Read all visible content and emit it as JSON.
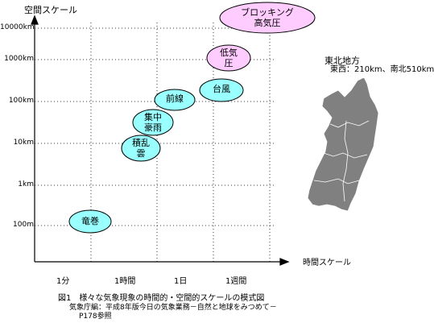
{
  "axis": {
    "y_title": "空間スケール",
    "x_title": "時間スケール",
    "y_ticks": [
      "10000km",
      "1000km",
      "100km",
      "10km",
      "1km",
      "100m"
    ],
    "x_ticks": [
      "1分",
      "1時間",
      "1日",
      "1週間"
    ]
  },
  "phenomena": {
    "blocking_line1": "ブロッキング",
    "blocking_line2": "高気圧",
    "low_line1": "低気",
    "low_line2": "圧",
    "typhoon": "台風",
    "front": "前線",
    "heavy_rain_line1": "集中",
    "heavy_rain_line2": "豪雨",
    "cumulonimbus_line1": "積乱",
    "cumulonimbus_line2": "雲",
    "tornado": "竜巻"
  },
  "colors": {
    "cyan_fill": "#99ffff",
    "pink_fill": "#ffccff",
    "map_fill": "#808080"
  },
  "map": {
    "region": "東北地方",
    "size": "東西：210km、南北510km"
  },
  "caption": {
    "title": "図1　様々な気象現象の時間的・空間的スケールの模式図",
    "source_line1": "気象庁編：平成8年版今日の気象業務－自然と地球をみつめて－",
    "source_line2": "P178参照"
  }
}
